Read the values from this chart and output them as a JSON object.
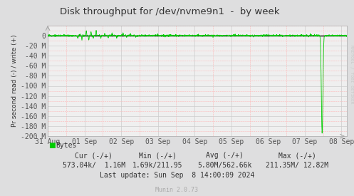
{
  "title": "Disk throughput for /dev/nvme9n1  -  by week",
  "ylabel": "Pr second read (-) / write (+)",
  "ylim": [
    -200,
    20
  ],
  "yticks": [
    0,
    -20,
    -40,
    -60,
    -80,
    -100,
    -120,
    -140,
    -160,
    -180,
    -200
  ],
  "ytick_labels": [
    "0",
    "-20 M",
    "-40 M",
    "-60 M",
    "-80 M",
    "-100 M",
    "-120 M",
    "-140 M",
    "-160 M",
    "-180 M",
    "-200 M"
  ],
  "xlim_days": [
    0,
    8.15
  ],
  "xtick_positions": [
    0,
    1,
    2,
    3,
    4,
    5,
    6,
    7,
    8
  ],
  "xtick_labels": [
    "31 Aug",
    "01 Sep",
    "02 Sep",
    "03 Sep",
    "04 Sep",
    "05 Sep",
    "06 Sep",
    "07 Sep",
    "08 Sep"
  ],
  "bg_color": "#dededf",
  "plot_bg_color": "#efefef",
  "line_color": "#00cc00",
  "zero_line_color": "#000000",
  "title_color": "#333333",
  "tick_label_color": "#555555",
  "legend_color": "#00cc00",
  "rrdtool_label": "RRDTOOL / TOBI OETIKER",
  "spike_x": 7.47,
  "spike_min": -193,
  "munin_version": "Munin 2.0.73"
}
